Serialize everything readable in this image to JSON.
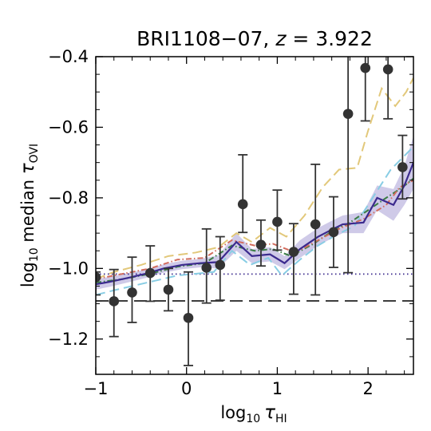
{
  "chart_data": {
    "type": "line",
    "title": {
      "text": "BRI1108−07, ",
      "z_var": "z",
      "z_value": " = 3.922"
    },
    "xlabel": {
      "prefix": "log",
      "sub": "10",
      "var": "τ",
      "var_sub": "HI"
    },
    "ylabel": {
      "prefix": "log",
      "sub": "10",
      "mid": " median ",
      "var": "τ",
      "var_sub": "OVI"
    },
    "xlim": [
      -1.0,
      2.5
    ],
    "ylim": [
      -1.3,
      -0.4
    ],
    "xticks": [
      -1,
      0,
      1,
      2
    ],
    "xtick_labels": [
      "−1",
      "0",
      "1",
      "2"
    ],
    "yticks": [
      -1.2,
      -1.0,
      -0.8,
      -0.6,
      -0.4
    ],
    "ytick_labels": [
      "−1.2",
      "−1.0",
      "−0.8",
      "−0.6",
      "−0.4"
    ],
    "observed": {
      "x": [
        -1.0,
        -0.8,
        -0.6,
        -0.4,
        -0.2,
        0.02,
        0.22,
        0.37,
        0.62,
        0.82,
        1.0,
        1.18,
        1.42,
        1.62,
        1.78,
        1.97,
        2.22,
        2.38
      ],
      "y": [
        -1.025,
        -1.093,
        -1.068,
        -1.013,
        -1.06,
        -1.14,
        -0.998,
        -0.99,
        -0.818,
        -0.933,
        -0.868,
        -0.953,
        -0.875,
        -0.897,
        -0.562,
        -0.432,
        -0.436,
        -0.713
      ],
      "err_low": [
        0.05,
        0.1,
        0.085,
        0.08,
        0.06,
        0.135,
        0.1,
        0.1,
        0.08,
        0.06,
        0.08,
        0.12,
        0.2,
        0.1,
        0.45,
        0.15,
        0.14,
        0.09
      ],
      "err_high": [
        0.015,
        0.09,
        0.1,
        0.077,
        0.06,
        0.13,
        0.11,
        0.08,
        0.14,
        0.07,
        0.09,
        0.08,
        0.17,
        0.1,
        0.25,
        0.15,
        0.12,
        0.09
      ],
      "color": "#333333"
    },
    "model_median": {
      "x": [
        -1.0,
        -0.85,
        -0.65,
        -0.45,
        -0.25,
        -0.05,
        0.15,
        0.35,
        0.55,
        0.72,
        0.92,
        1.08,
        1.25,
        1.45,
        1.6,
        1.72,
        1.95,
        2.1,
        2.28,
        2.4,
        2.5
      ],
      "y": [
        -1.045,
        -1.038,
        -1.027,
        -1.015,
        -1.0,
        -0.99,
        -0.985,
        -0.982,
        -0.925,
        -0.965,
        -0.96,
        -0.985,
        -0.945,
        -0.91,
        -0.89,
        -0.875,
        -0.87,
        -0.8,
        -0.82,
        -0.765,
        -0.7
      ],
      "band_low": [
        -1.06,
        -1.052,
        -1.04,
        -1.027,
        -1.012,
        -1.002,
        -0.997,
        -1.0,
        -0.95,
        -0.985,
        -0.98,
        -1.002,
        -0.97,
        -0.935,
        -0.915,
        -0.9,
        -0.9,
        -0.835,
        -0.865,
        -0.82,
        -0.775
      ],
      "band_high": [
        -1.03,
        -1.024,
        -1.014,
        -1.003,
        -0.988,
        -0.978,
        -0.973,
        -0.963,
        -0.9,
        -0.945,
        -0.94,
        -0.965,
        -0.92,
        -0.885,
        -0.865,
        -0.85,
        -0.84,
        -0.765,
        -0.775,
        -0.71,
        -0.625
      ],
      "color": "#3b2a8e",
      "band_color": "#a89fd6"
    },
    "comparison_lines": [
      {
        "style": "dashed",
        "color": "#e2c87a",
        "x": [
          -1.0,
          -0.8,
          -0.5,
          -0.2,
          0.1,
          0.35,
          0.55,
          0.72,
          0.92,
          1.1,
          1.3,
          1.5,
          1.68,
          1.88,
          2.0,
          2.15,
          2.3,
          2.42,
          2.5
        ],
        "y": [
          -1.03,
          -1.01,
          -0.99,
          -0.965,
          -0.955,
          -0.94,
          -0.9,
          -0.925,
          -0.885,
          -0.91,
          -0.85,
          -0.77,
          -0.72,
          -0.715,
          -0.61,
          -0.49,
          -0.54,
          -0.5,
          -0.46
        ]
      },
      {
        "style": "dashed",
        "color": "#88cde4",
        "x": [
          -1.0,
          -0.8,
          -0.6,
          -0.35,
          -0.1,
          0.1,
          0.3,
          0.5,
          0.7,
          0.9,
          1.05,
          1.25,
          1.45,
          1.65,
          1.85,
          2.05,
          2.25,
          2.5
        ],
        "y": [
          -1.075,
          -1.062,
          -1.05,
          -1.035,
          -1.02,
          -1.015,
          -1.01,
          -0.95,
          -0.99,
          -0.97,
          -1.02,
          -0.975,
          -0.935,
          -0.905,
          -0.88,
          -0.8,
          -0.72,
          -0.655
        ]
      },
      {
        "style": "dashdot",
        "color": "#3a7d45",
        "x": [
          -1.0,
          -0.7,
          -0.4,
          -0.1,
          0.2,
          0.5,
          0.75,
          0.95,
          1.15,
          1.4,
          1.6,
          1.8,
          2.0,
          2.2,
          2.38,
          2.5
        ],
        "y": [
          -1.04,
          -1.03,
          -1.015,
          -0.995,
          -0.985,
          -0.935,
          -0.95,
          -0.945,
          -0.965,
          -0.93,
          -0.895,
          -0.87,
          -0.835,
          -0.8,
          -0.77,
          -0.745
        ]
      },
      {
        "style": "dashdot",
        "color": "#d26d5e",
        "x": [
          -1.0,
          -0.7,
          -0.4,
          -0.1,
          0.2,
          0.5,
          0.75,
          0.95,
          1.2,
          1.45,
          1.7,
          1.95,
          2.2,
          2.35,
          2.5
        ],
        "y": [
          -1.03,
          -1.015,
          -1.0,
          -0.975,
          -0.97,
          -0.92,
          -0.935,
          -0.93,
          -0.955,
          -0.92,
          -0.885,
          -0.86,
          -0.82,
          -0.77,
          -0.75
        ]
      }
    ],
    "reference_lines": [
      {
        "style": "dotted",
        "color": "#3b2a8e",
        "y": -1.016
      },
      {
        "style": "dashed",
        "color": "#222222",
        "y": -1.092
      }
    ],
    "grid": false,
    "legend": "none"
  }
}
